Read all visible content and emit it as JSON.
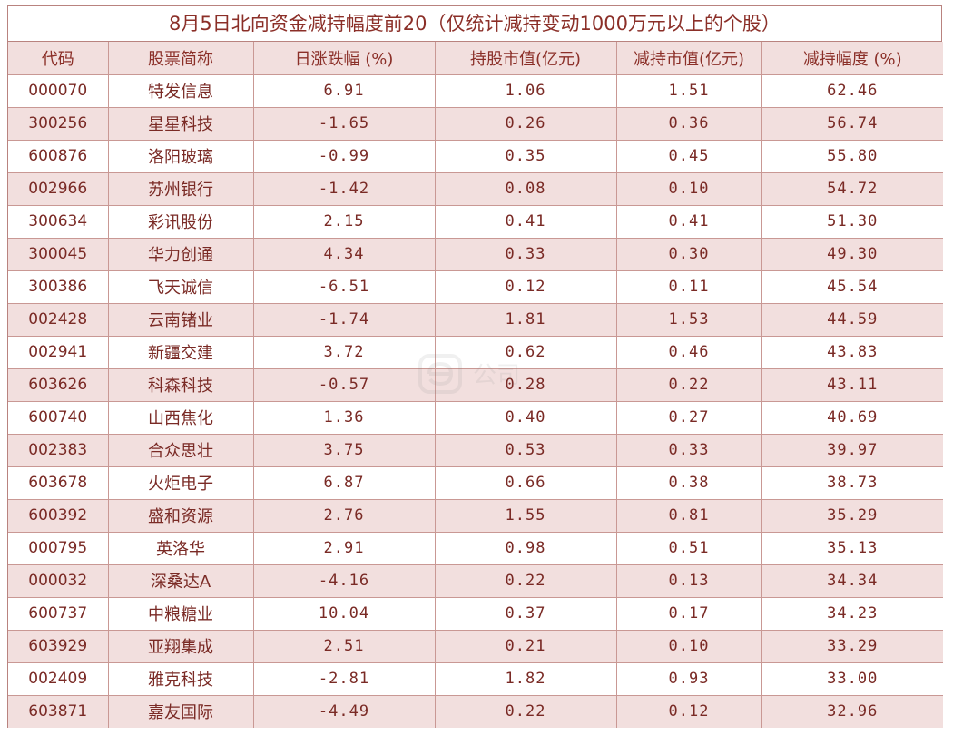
{
  "chart_data": {
    "type": "table",
    "title": "8月5日北向资金减持幅度前20（仅统计减持变动1000万元以上的个股）",
    "columns": [
      "代码",
      "股票简称",
      "日涨跌幅 (%)",
      "持股市值(亿元)",
      "减持市值(亿元)",
      "减持幅度 (%)"
    ],
    "rows": [
      [
        "000070",
        "特发信息",
        "6.91",
        "1.06",
        "1.51",
        "62.46"
      ],
      [
        "300256",
        "星星科技",
        "-1.65",
        "0.26",
        "0.36",
        "56.74"
      ],
      [
        "600876",
        "洛阳玻璃",
        "-0.99",
        "0.35",
        "0.45",
        "55.80"
      ],
      [
        "002966",
        "苏州银行",
        "-1.42",
        "0.08",
        "0.10",
        "54.72"
      ],
      [
        "300634",
        "彩讯股份",
        "2.15",
        "0.41",
        "0.41",
        "51.30"
      ],
      [
        "300045",
        "华力创通",
        "4.34",
        "0.33",
        "0.30",
        "49.30"
      ],
      [
        "300386",
        "飞天诚信",
        "-6.51",
        "0.12",
        "0.11",
        "45.54"
      ],
      [
        "002428",
        "云南锗业",
        "-1.74",
        "1.81",
        "1.53",
        "44.59"
      ],
      [
        "002941",
        "新疆交建",
        "3.72",
        "0.62",
        "0.46",
        "43.83"
      ],
      [
        "603626",
        "科森科技",
        "-0.57",
        "0.28",
        "0.22",
        "43.11"
      ],
      [
        "600740",
        "山西焦化",
        "1.36",
        "0.40",
        "0.27",
        "40.69"
      ],
      [
        "002383",
        "合众思壮",
        "3.75",
        "0.53",
        "0.33",
        "39.97"
      ],
      [
        "603678",
        "火炬电子",
        "6.87",
        "0.66",
        "0.38",
        "38.73"
      ],
      [
        "600392",
        "盛和资源",
        "2.76",
        "1.55",
        "0.81",
        "35.29"
      ],
      [
        "000795",
        "英洛华",
        "2.91",
        "0.98",
        "0.51",
        "35.13"
      ],
      [
        "000032",
        "深桑达A",
        "-4.16",
        "0.22",
        "0.13",
        "34.34"
      ],
      [
        "600737",
        "中粮糖业",
        "10.04",
        "0.37",
        "0.17",
        "34.23"
      ],
      [
        "603929",
        "亚翔集成",
        "2.51",
        "0.21",
        "0.10",
        "33.29"
      ],
      [
        "002409",
        "雅克科技",
        "-2.81",
        "1.82",
        "0.93",
        "33.00"
      ],
      [
        "603871",
        "嘉友国际",
        "-4.49",
        "0.22",
        "0.12",
        "32.96"
      ]
    ]
  },
  "watermark": {
    "text": "公司",
    "icon": "e-logo-icon"
  }
}
